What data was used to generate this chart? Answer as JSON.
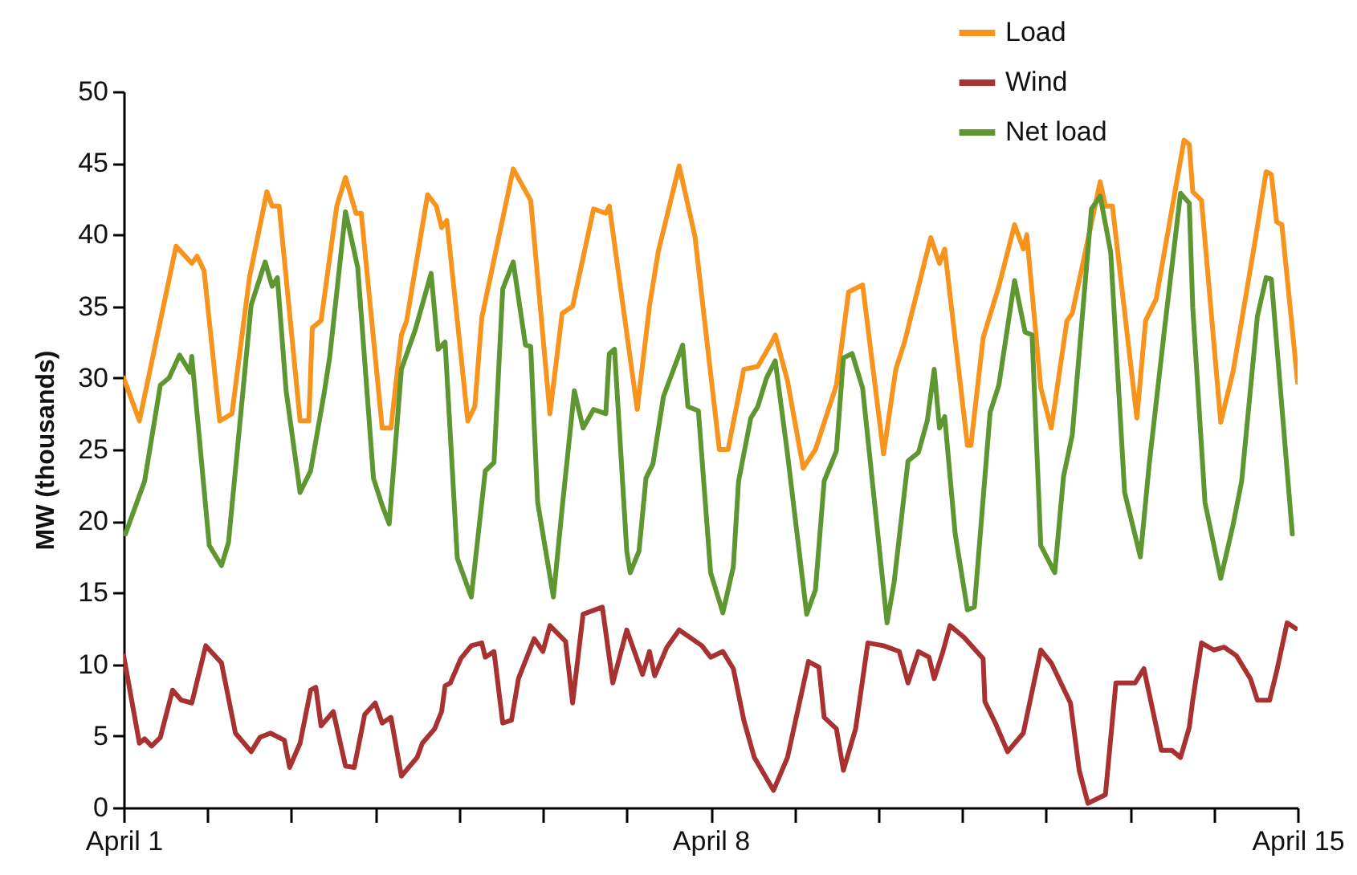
{
  "chart_data": {
    "type": "line",
    "ylabel": "MW (thousands)",
    "legend": "top right",
    "xlim": [
      "--04-01",
      "--04-15"
    ],
    "xticks": [
      {
        "value": "--04-01",
        "label": "April 1"
      },
      {
        "value": "--04-02",
        "label": null
      },
      {
        "value": "--04-03",
        "label": null
      },
      {
        "value": "--04-04",
        "label": null
      },
      {
        "value": "--04-05",
        "label": null
      },
      {
        "value": "--04-06",
        "label": null
      },
      {
        "value": "--04-07",
        "label": null
      },
      {
        "value": "--04-08",
        "label": "April 8"
      },
      {
        "value": "--04-09",
        "label": null
      },
      {
        "value": "--04-10",
        "label": null
      },
      {
        "value": "--04-11",
        "label": null
      },
      {
        "value": "--04-12",
        "label": null
      },
      {
        "value": "--04-13",
        "label": null
      },
      {
        "value": "--04-14",
        "label": null
      },
      {
        "value": "--04-15",
        "label": "April 15"
      }
    ],
    "ylim": [
      0,
      50
    ],
    "yticks": [
      0,
      5,
      10,
      15,
      20,
      25,
      30,
      35,
      40,
      45,
      50
    ],
    "series": [
      {
        "name": "Load",
        "color": "#f7941d",
        "x": [
          "--04-01T00:00",
          "--04-01T04:30",
          "--04-01T15:00",
          "--04-01T19:30",
          "--04-01T21:00",
          "--04-01T23:00",
          "--04-02T03:30",
          "--04-02T07:00",
          "--04-02T12:00",
          "--04-02T17:00",
          "--04-02T18:30",
          "--04-02T20:30",
          "--04-03T02:30",
          "--04-03T05:00",
          "--04-03T06:00",
          "--04-03T08:30",
          "--04-03T13:00",
          "--04-03T15:30",
          "--04-03T18:30",
          "--04-03T20:00",
          "--04-04T02:00",
          "--04-04T04:30",
          "--04-04T07:30",
          "--04-04T09:00",
          "--04-04T15:00",
          "--04-04T17:30",
          "--04-04T19:00",
          "--04-04T20:30",
          "--04-05T02:30",
          "--04-05T04:30",
          "--04-05T06:30",
          "--04-05T15:30",
          "--04-05T20:30",
          "--04-06T02:00",
          "--04-06T05:30",
          "--04-06T08:30",
          "--04-06T14:30",
          "--04-06T18:00",
          "--04-06T19:00",
          "--04-07T03:00",
          "--04-07T06:30",
          "--04-07T09:00",
          "--04-07T15:00",
          "--04-07T19:30",
          "--04-08T02:30",
          "--04-08T05:00",
          "--04-08T09:30",
          "--04-08T13:30",
          "--04-08T17:30",
          "--04-08T18:30",
          "--04-08T22:00",
          "--04-09T02:30",
          "--04-09T06:00",
          "--04-09T12:00",
          "--04-09T15:30",
          "--04-09T19:30",
          "--04-10T01:30",
          "--04-10T05:00",
          "--04-10T07:30",
          "--04-10T15:00",
          "--04-10T17:30",
          "--04-10T19:00",
          "--04-11T01:30",
          "--04-11T02:30",
          "--04-11T06:00",
          "--04-11T10:30",
          "--04-11T15:00",
          "--04-11T17:30",
          "--04-11T18:30",
          "--04-11T22:30",
          "--04-12T01:30",
          "--04-12T06:00",
          "--04-12T07:30",
          "--04-12T15:30",
          "--04-12T17:00",
          "--04-12T19:00",
          "--04-13T02:00",
          "--04-13T04:30",
          "--04-13T07:30",
          "--04-13T15:30",
          "--04-13T17:00",
          "--04-13T18:00",
          "--04-13T20:30",
          "--04-14T02:00",
          "--04-14T05:30",
          "--04-14T12:00",
          "--04-14T15:00",
          "--04-14T16:30",
          "--04-14T18:00",
          "--04-14T19:30",
          "--04-15T00:00"
        ],
        "values": [
          30,
          27,
          39.2,
          38,
          38.5,
          37.5,
          27,
          27.5,
          37,
          43,
          42,
          42,
          27,
          27,
          33.5,
          34,
          42,
          44,
          41.5,
          41.5,
          26.5,
          26.5,
          33,
          34,
          42.8,
          42,
          40.5,
          41,
          27,
          28,
          34.2,
          44.6,
          42.4,
          27.5,
          34.5,
          35,
          41.8,
          41.5,
          42,
          27.8,
          35,
          38.8,
          44.8,
          39.9,
          25,
          25,
          30.6,
          30.8,
          32.5,
          33,
          29.8,
          23.7,
          25,
          29.5,
          36,
          36.5,
          24.7,
          30.6,
          32.5,
          39.8,
          38,
          39,
          25.3,
          25.3,
          32.8,
          36.4,
          40.7,
          39,
          40,
          29.3,
          26.5,
          34,
          34.5,
          43.7,
          42,
          42,
          27.2,
          34,
          35.5,
          46.6,
          46.3,
          43,
          42.4,
          26.9,
          30.4,
          39.8,
          44.4,
          44.2,
          40.9,
          40.7,
          29.7
        ]
      },
      {
        "name": "Wind",
        "color": "#a83232",
        "x": [
          "--04-01T00:00",
          "--04-01T04:30",
          "--04-01T06:00",
          "--04-01T08:00",
          "--04-01T10:30",
          "--04-01T14:00",
          "--04-01T16:30",
          "--04-01T19:30",
          "--04-01T23:30",
          "--04-02T04:00",
          "--04-02T08:00",
          "--04-02T12:30",
          "--04-02T15:00",
          "--04-02T18:00",
          "--04-02T22:00",
          "--04-02T23:30",
          "--04-03T02:30",
          "--04-03T05:30",
          "--04-03T07:00",
          "--04-03T08:30",
          "--04-03T12:00",
          "--04-03T15:30",
          "--04-03T18:00",
          "--04-03T21:00",
          "--04-04T00:00",
          "--04-04T02:00",
          "--04-04T04:30",
          "--04-04T07:30",
          "--04-04T12:00",
          "--04-04T13:30",
          "--04-04T17:00",
          "--04-04T19:00",
          "--04-04T20:00",
          "--04-04T21:30",
          "--04-05T00:30",
          "--04-05T03:30",
          "--04-05T06:30",
          "--04-05T07:30",
          "--04-05T10:00",
          "--04-05T12:30",
          "--04-05T15:00",
          "--04-05T17:00",
          "--04-05T21:30",
          "--04-06T00:00",
          "--04-06T02:00",
          "--04-06T06:30",
          "--04-06T08:30",
          "--04-06T11:30",
          "--04-06T17:00",
          "--04-06T20:00",
          "--04-07T00:00",
          "--04-07T04:30",
          "--04-07T06:30",
          "--04-07T08:00",
          "--04-07T11:30",
          "--04-07T15:00",
          "--04-07T21:30",
          "--04-08T00:00",
          "--04-08T03:30",
          "--04-08T06:30",
          "--04-08T09:30",
          "--04-08T12:30",
          "--04-08T18:00",
          "--04-08T22:00",
          "--04-09T04:00",
          "--04-09T07:00",
          "--04-09T08:30",
          "--04-09T12:00",
          "--04-09T14:00",
          "--04-09T17:30",
          "--04-09T21:00",
          "--04-10T01:30",
          "--04-10T06:00",
          "--04-10T08:30",
          "--04-10T11:30",
          "--04-10T14:30",
          "--04-10T16:00",
          "--04-10T18:30",
          "--04-10T20:30",
          "--04-11T00:30",
          "--04-11T06:00",
          "--04-11T06:30",
          "--04-11T09:30",
          "--04-11T13:00",
          "--04-11T17:30",
          "--04-11T22:30",
          "--04-12T01:30",
          "--04-12T07:00",
          "--04-12T09:30",
          "--04-12T12:00",
          "--04-12T17:00",
          "--04-12T20:00",
          "--04-13T01:30",
          "--04-13T04:00",
          "--04-13T09:00",
          "--04-13T12:00",
          "--04-13T14:30",
          "--04-13T17:00",
          "--04-13T18:00",
          "--04-13T20:30",
          "--04-14T00:00",
          "--04-14T03:00",
          "--04-14T06:30",
          "--04-14T10:30",
          "--04-14T12:30",
          "--04-14T16:00",
          "--04-14T18:00",
          "--04-14T21:00",
          "--04-14T23:30"
        ],
        "values": [
          10.6,
          4.5,
          4.8,
          4.3,
          4.9,
          8.2,
          7.5,
          7.3,
          11.3,
          10.1,
          5.2,
          3.9,
          4.9,
          5.2,
          4.7,
          2.8,
          4.5,
          8.2,
          8.4,
          5.7,
          6.7,
          2.9,
          2.8,
          6.5,
          7.3,
          5.9,
          6.3,
          2.2,
          3.5,
          4.5,
          5.5,
          6.7,
          8.5,
          8.7,
          10.4,
          11.3,
          11.5,
          10.5,
          10.9,
          5.9,
          6.1,
          9,
          11.8,
          10.9,
          12.7,
          11.6,
          7.3,
          13.5,
          14,
          8.7,
          12.4,
          9.3,
          10.9,
          9.2,
          11.2,
          12.4,
          11.3,
          10.5,
          10.9,
          9.7,
          6.1,
          3.5,
          1.2,
          3.5,
          10.2,
          9.8,
          6.3,
          5.5,
          2.6,
          5.5,
          11.5,
          11.3,
          10.9,
          8.7,
          10.9,
          10.5,
          9,
          10.9,
          12.7,
          11.9,
          10.4,
          7.4,
          5.9,
          3.9,
          5.2,
          11,
          10.1,
          7.3,
          2.6,
          0.3,
          0.9,
          8.7,
          8.7,
          9.7,
          4,
          4,
          3.5,
          5.6,
          7.5,
          11.5,
          11,
          11.2,
          10.6,
          9,
          7.5,
          7.5,
          9.5,
          12.9,
          12.5
        ]
      },
      {
        "name": "Net load",
        "color": "#5e9732",
        "x": [
          "--04-01T00:30",
          "--04-01T06:00",
          "--04-01T10:30",
          "--04-01T13:00",
          "--04-01T16:00",
          "--04-01T19:00",
          "--04-01T19:30",
          "--04-02T00:30",
          "--04-02T04:00",
          "--04-02T06:00",
          "--04-02T12:30",
          "--04-02T16:30",
          "--04-02T18:30",
          "--04-02T20:00",
          "--04-02T22:30",
          "--04-03T02:30",
          "--04-03T05:30",
          "--04-03T09:30",
          "--04-03T11:00",
          "--04-03T15:30",
          "--04-03T19:00",
          "--04-03T23:30",
          "--04-04T02:00",
          "--04-04T04:00",
          "--04-04T07:30",
          "--04-04T11:30",
          "--04-04T16:00",
          "--04-04T18:00",
          "--04-04T20:00",
          "--04-04T23:30",
          "--04-05T03:30",
          "--04-05T07:30",
          "--04-05T10:00",
          "--04-05T12:30",
          "--04-05T15:30",
          "--04-05T19:00",
          "--04-05T20:30",
          "--04-05T22:30",
          "--04-06T03:00",
          "--04-06T05:30",
          "--04-06T09:00",
          "--04-06T11:30",
          "--04-06T14:30",
          "--04-06T18:00",
          "--04-06T19:00",
          "--04-06T20:30",
          "--04-07T00:00",
          "--04-07T01:00",
          "--04-07T03:30",
          "--04-07T05:30",
          "--04-07T07:30",
          "--04-07T10:30",
          "--04-07T16:00",
          "--04-07T17:30",
          "--04-07T20:30",
          "--04-08T00:00",
          "--04-08T03:30",
          "--04-08T06:30",
          "--04-08T08:00",
          "--04-08T11:30",
          "--04-08T13:30",
          "--04-08T16:00",
          "--04-08T18:30",
          "--04-08T22:00",
          "--04-09T03:30",
          "--04-09T06:00",
          "--04-09T08:30",
          "--04-09T12:00",
          "--04-09T14:00",
          "--04-09T16:30",
          "--04-09T19:30",
          "--04-10T02:30",
          "--04-10T04:30",
          "--04-10T08:30",
          "--04-10T11:30",
          "--04-10T14:00",
          "--04-10T16:00",
          "--04-10T17:30",
          "--04-10T19:00",
          "--04-10T22:00",
          "--04-11T01:30",
          "--04-11T03:30",
          "--04-11T08:00",
          "--04-11T10:30",
          "--04-11T15:00",
          "--04-11T18:00",
          "--04-11T20:00",
          "--04-11T22:30",
          "--04-12T02:30",
          "--04-12T05:00",
          "--04-12T07:30",
          "--04-12T13:00",
          "--04-12T15:30",
          "--04-12T18:30",
          "--04-12T22:30",
          "--04-13T03:00",
          "--04-13T05:30",
          "--04-13T10:00",
          "--04-13T14:30",
          "--04-13T17:00",
          "--04-13T18:00",
          "--04-13T21:30",
          "--04-14T02:00",
          "--04-14T05:30",
          "--04-14T08:00",
          "--04-14T12:30",
          "--04-14T15:00",
          "--04-14T16:30",
          "--04-14T22:30"
        ],
        "values": [
          19.1,
          22.8,
          29.5,
          30,
          31.6,
          30.4,
          31.5,
          18.3,
          16.9,
          18.5,
          35.1,
          38.1,
          36.4,
          37,
          29.1,
          22,
          23.5,
          29.1,
          31.5,
          41.6,
          37.7,
          23,
          21.1,
          19.8,
          30.6,
          33.4,
          37.3,
          32,
          32.5,
          17.4,
          14.7,
          23.5,
          24.1,
          36.2,
          38.1,
          32.3,
          32.2,
          21.3,
          14.7,
          20.9,
          29.1,
          26.5,
          27.8,
          27.5,
          31.7,
          32,
          17.9,
          16.4,
          17.9,
          23,
          24,
          28.7,
          32.3,
          28,
          27.7,
          16.4,
          13.6,
          16.8,
          22.8,
          27.2,
          28,
          30,
          31.2,
          24.7,
          13.5,
          15.2,
          22.8,
          24.9,
          31.4,
          31.7,
          29.3,
          12.9,
          15.7,
          24.2,
          24.8,
          27,
          30.6,
          26.5,
          27.3,
          19.1,
          13.8,
          14,
          27.6,
          29.5,
          36.8,
          33.2,
          33,
          18.3,
          16.4,
          23.1,
          26,
          41.8,
          42.7,
          38.8,
          22,
          17.5,
          23.9,
          33.6,
          42.9,
          42.2,
          34.9,
          21.3,
          16,
          19.7,
          22.8,
          34.3,
          37,
          36.9,
          19.1
        ]
      }
    ]
  }
}
